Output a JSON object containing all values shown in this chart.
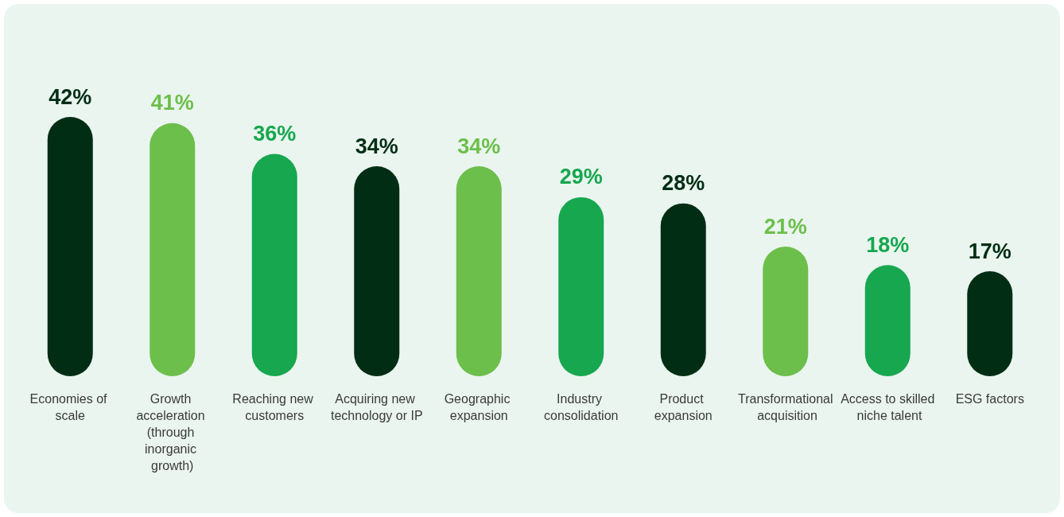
{
  "chart_data": {
    "type": "bar",
    "categories": [
      "Economies of scale",
      "Growth acceleration (through inorganic growth)",
      "Reaching new customers",
      "Acquiring new technology or IP",
      "Geographic expansion",
      "Industry consolidation",
      "Product expansion",
      "Transformational acquisition",
      "Access to skilled niche talent",
      "ESG factors"
    ],
    "values": [
      42,
      41,
      36,
      34,
      34,
      29,
      28,
      21,
      18,
      17
    ],
    "value_labels": [
      "42%",
      "41%",
      "36%",
      "34%",
      "34%",
      "29%",
      "28%",
      "21%",
      "18%",
      "17%"
    ],
    "colors": [
      "#002d14",
      "#6cbf4b",
      "#17a74f",
      "#002d14",
      "#6cbf4b",
      "#17a74f",
      "#002d14",
      "#6cbf4b",
      "#17a74f",
      "#002d14"
    ]
  }
}
